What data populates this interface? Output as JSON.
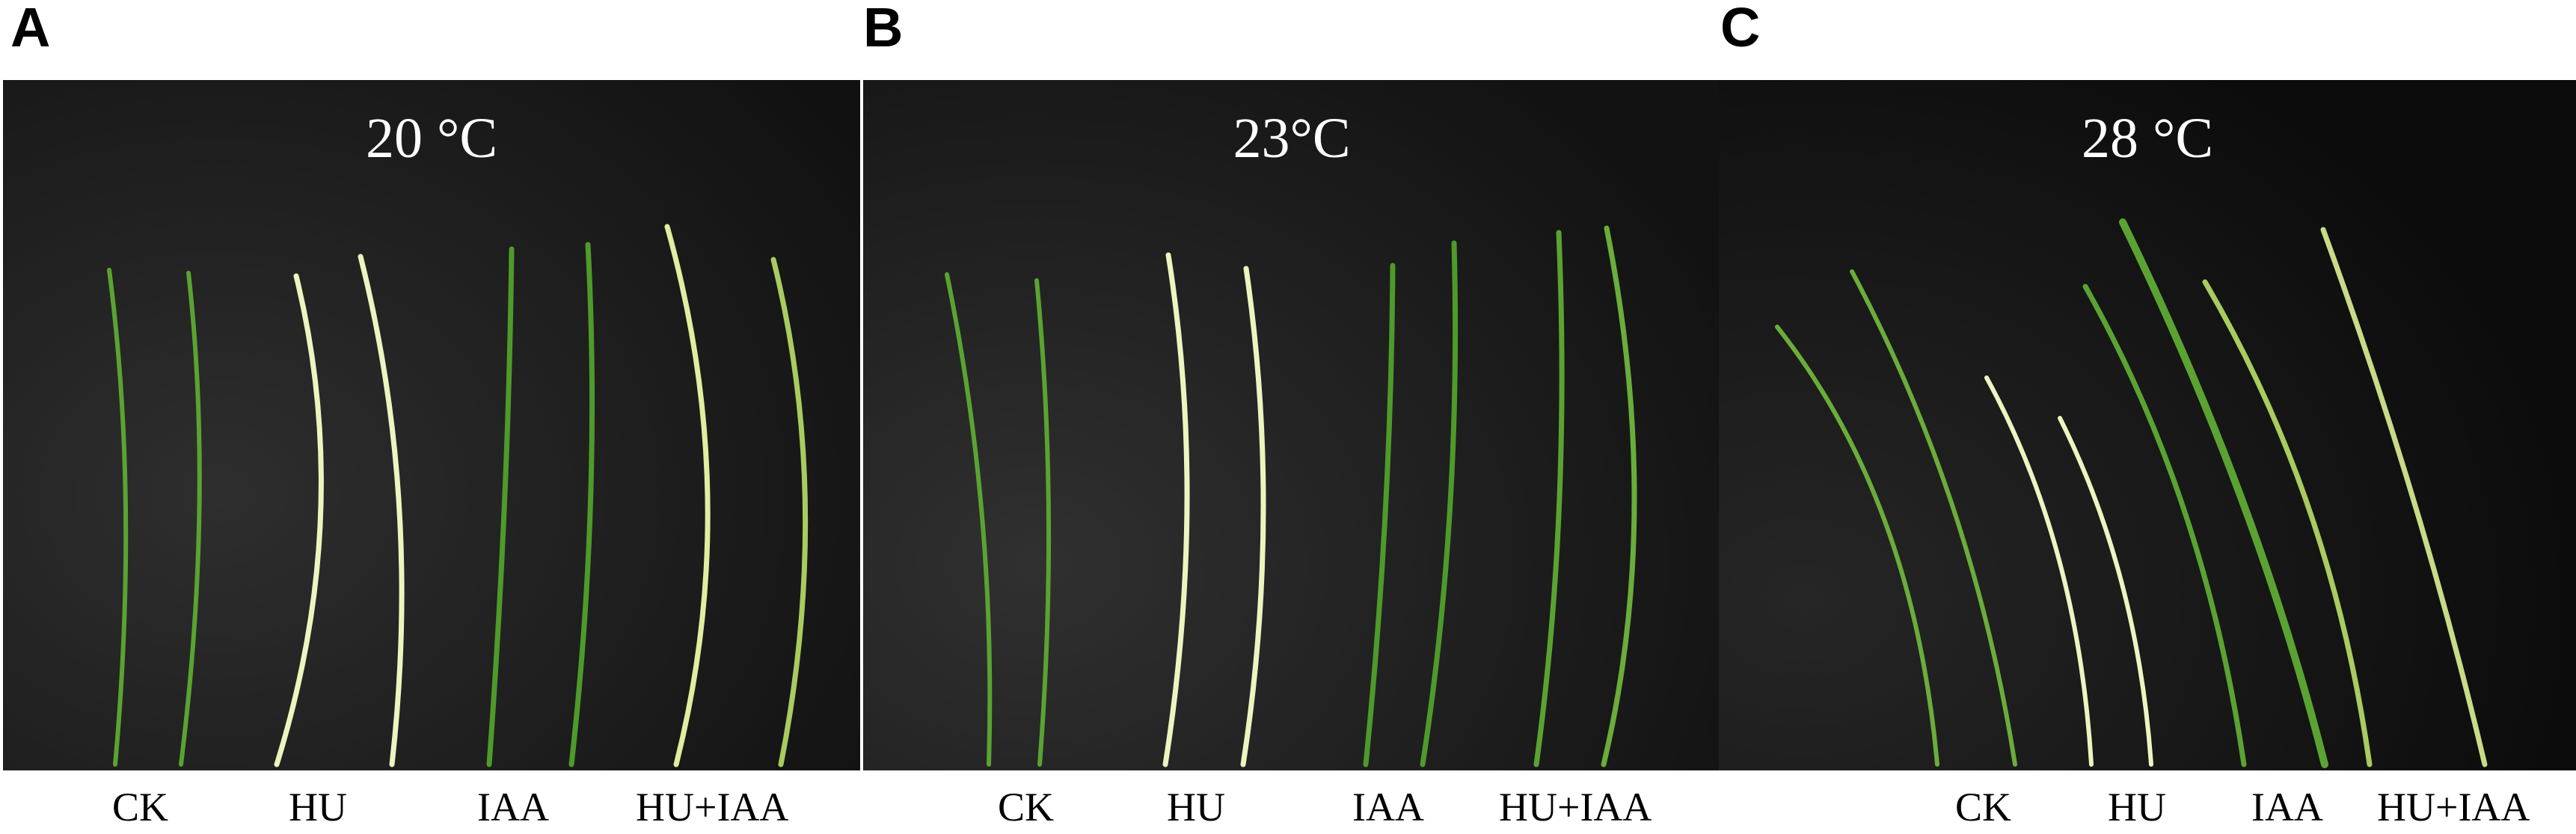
{
  "panels": [
    {
      "letter": "A",
      "temperature": "20 °C",
      "labels": [
        "CK",
        "HU",
        "IAA",
        "HU+IAA"
      ]
    },
    {
      "letter": "B",
      "temperature": "23°C",
      "labels": [
        "CK",
        "HU",
        "IAA",
        "HU+IAA"
      ]
    },
    {
      "letter": "C",
      "temperature": "28 °C",
      "labels": [
        "CK",
        "HU",
        "IAA",
        "HU+IAA"
      ]
    }
  ],
  "colors": {
    "background": "#0f0f0f",
    "leaf_green": "#4e9a2a",
    "leaf_pale": "#e8f0b0"
  }
}
